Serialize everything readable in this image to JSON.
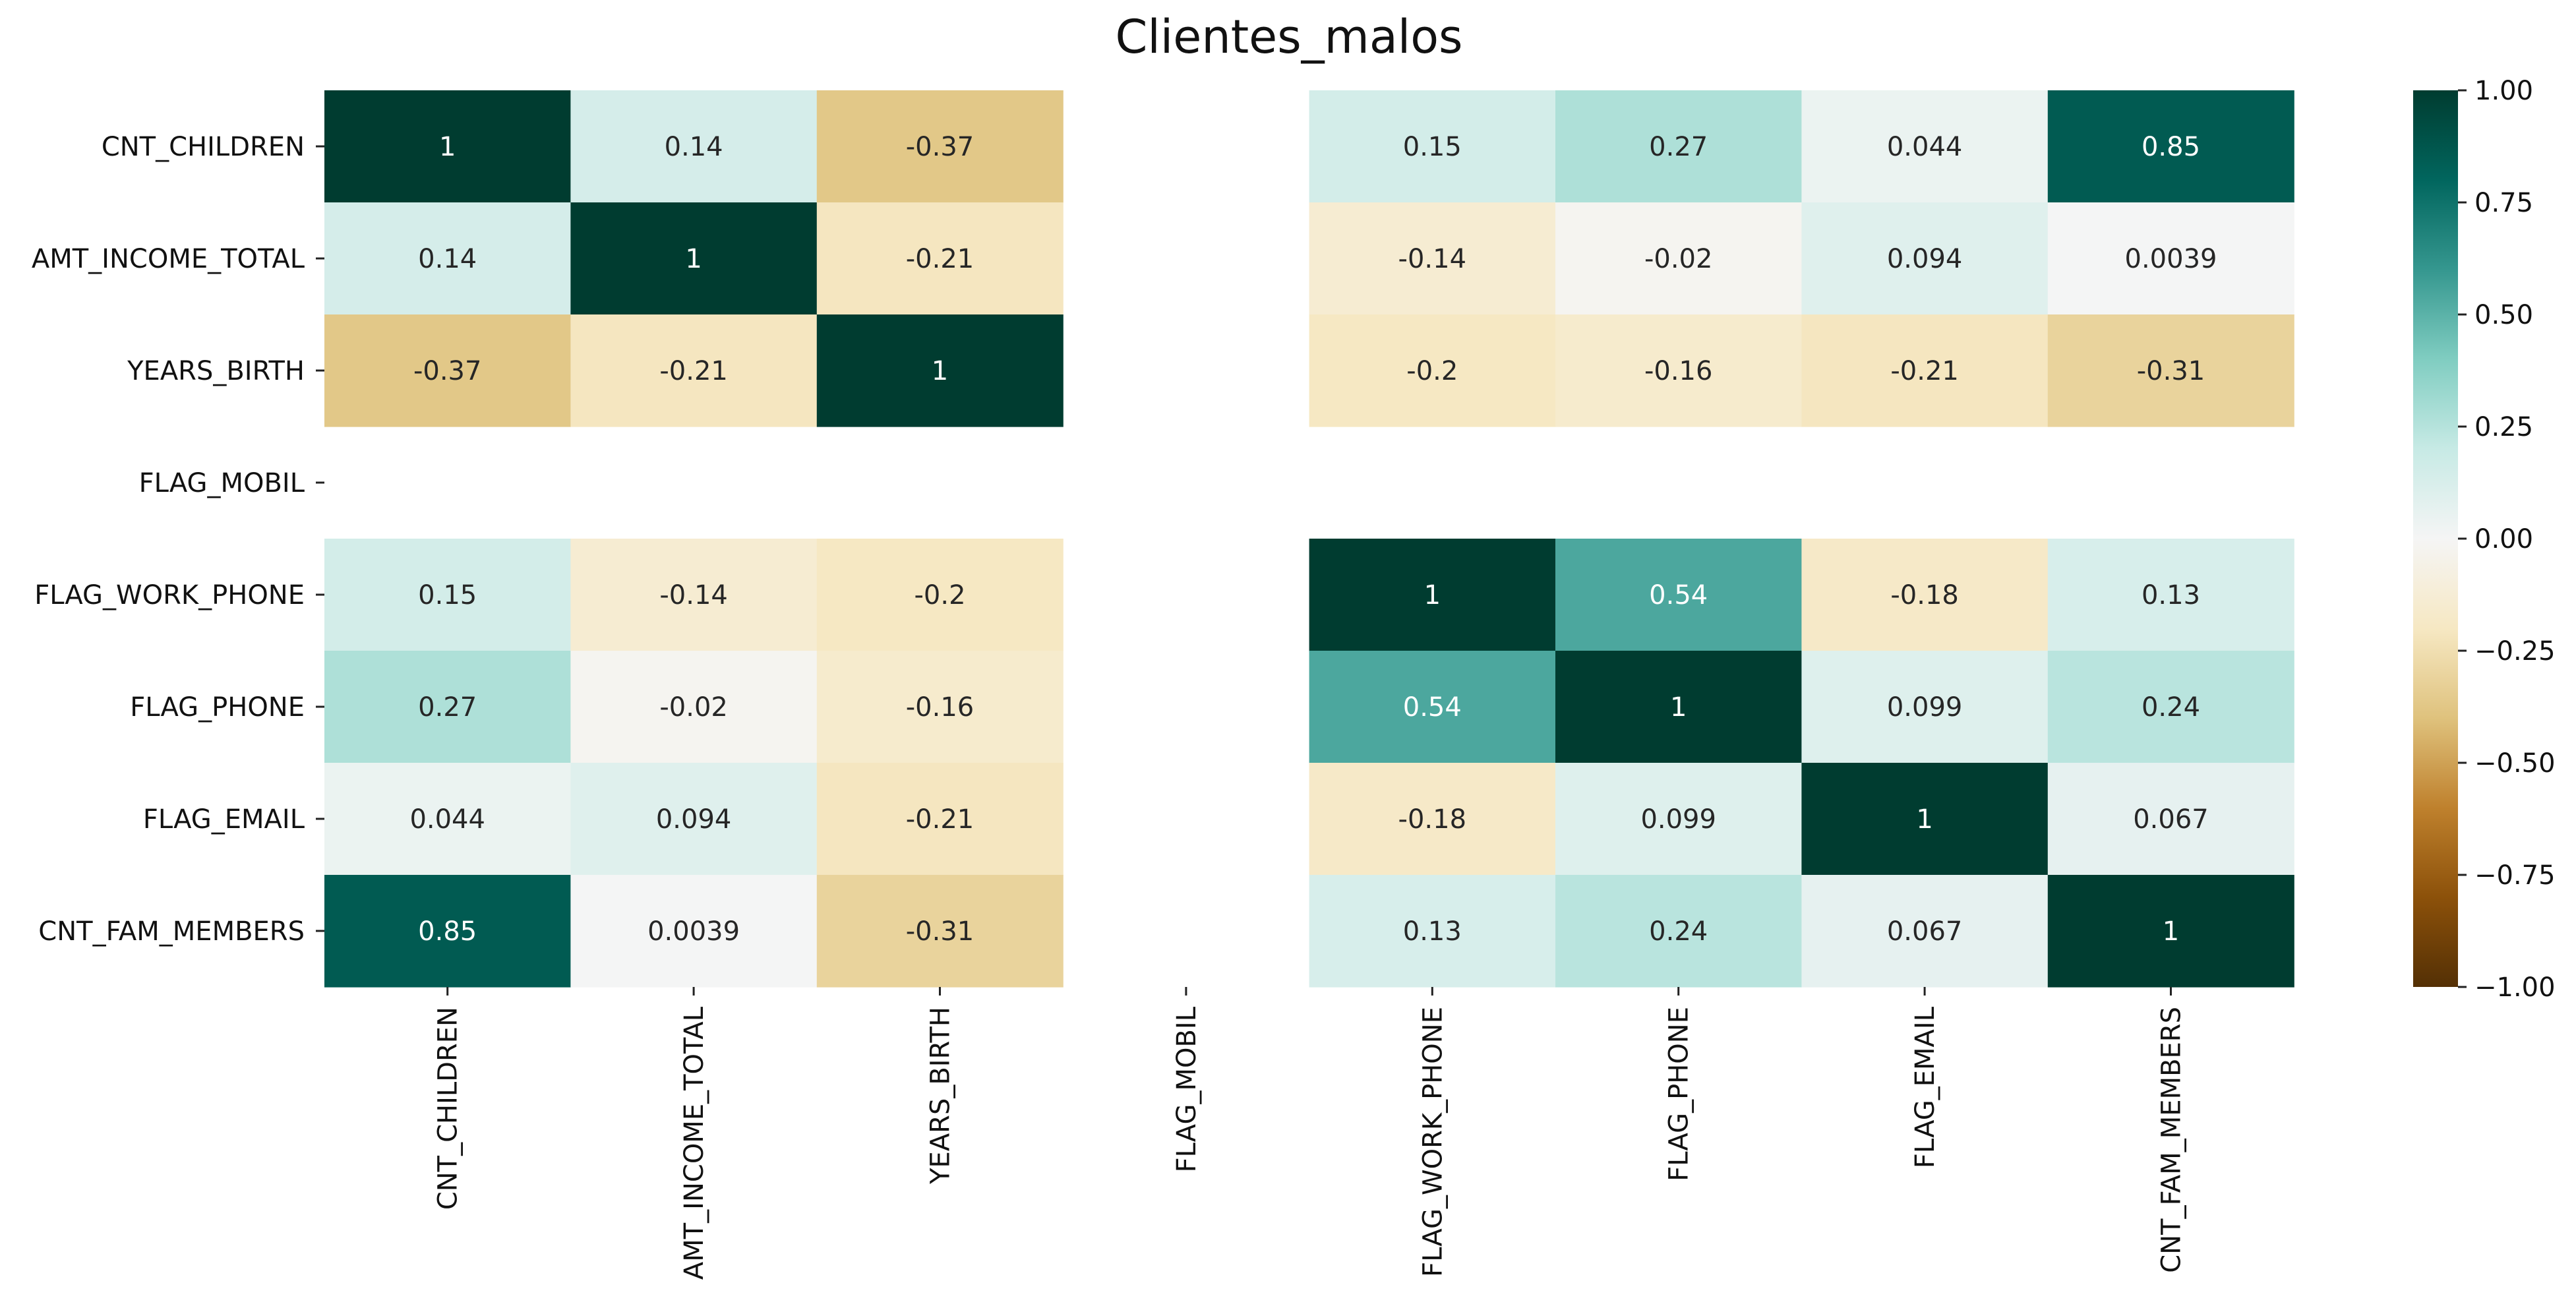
{
  "chart_data": {
    "type": "heatmap",
    "title": "Clientes_malos",
    "row_labels": [
      "CNT_CHILDREN",
      "AMT_INCOME_TOTAL",
      "YEARS_BIRTH",
      "FLAG_MOBIL",
      "FLAG_WORK_PHONE",
      "FLAG_PHONE",
      "FLAG_EMAIL",
      "CNT_FAM_MEMBERS"
    ],
    "col_labels": [
      "CNT_CHILDREN",
      "AMT_INCOME_TOTAL",
      "YEARS_BIRTH",
      "FLAG_MOBIL",
      "FLAG_WORK_PHONE",
      "FLAG_PHONE",
      "FLAG_EMAIL",
      "CNT_FAM_MEMBERS"
    ],
    "values": [
      [
        1,
        0.14,
        -0.37,
        null,
        0.15,
        0.27,
        0.044,
        0.85
      ],
      [
        0.14,
        1,
        -0.21,
        null,
        -0.14,
        -0.02,
        0.094,
        0.0039
      ],
      [
        -0.37,
        -0.21,
        1,
        null,
        -0.2,
        -0.16,
        -0.21,
        -0.31
      ],
      [
        null,
        null,
        null,
        null,
        null,
        null,
        null,
        null
      ],
      [
        0.15,
        -0.14,
        -0.2,
        null,
        1,
        0.54,
        -0.18,
        0.13
      ],
      [
        0.27,
        -0.02,
        -0.16,
        null,
        0.54,
        1,
        0.099,
        0.24
      ],
      [
        0.044,
        0.094,
        -0.21,
        null,
        -0.18,
        0.099,
        1,
        0.067
      ],
      [
        0.85,
        0.0039,
        -0.31,
        null,
        0.13,
        0.24,
        0.067,
        1
      ]
    ],
    "annotations": [
      [
        "1",
        "0.14",
        "-0.37",
        "",
        "0.15",
        "0.27",
        "0.044",
        "0.85"
      ],
      [
        "0.14",
        "1",
        "-0.21",
        "",
        "-0.14",
        "-0.02",
        "0.094",
        "0.0039"
      ],
      [
        "-0.37",
        "-0.21",
        "1",
        "",
        "-0.2",
        "-0.16",
        "-0.21",
        "-0.31"
      ],
      [
        "",
        "",
        "",
        "",
        "",
        "",
        "",
        ""
      ],
      [
        "0.15",
        "-0.14",
        "-0.2",
        "",
        "1",
        "0.54",
        "-0.18",
        "0.13"
      ],
      [
        "0.27",
        "-0.02",
        "-0.16",
        "",
        "0.54",
        "1",
        "0.099",
        "0.24"
      ],
      [
        "0.044",
        "0.094",
        "-0.21",
        "",
        "-0.18",
        "0.099",
        "1",
        "0.067"
      ],
      [
        "0.85",
        "0.0039",
        "-0.31",
        "",
        "0.13",
        "0.24",
        "0.067",
        "1"
      ]
    ],
    "colormap": "BrBG",
    "vmin": -1,
    "vmax": 1,
    "colorbar_ticks": [
      1.0,
      0.75,
      0.5,
      0.25,
      0.0,
      -0.25,
      -0.5,
      -0.75,
      -1.0
    ],
    "colorbar_tick_labels": [
      "1.00",
      "0.75",
      "0.50",
      "0.25",
      "0.00",
      "−0.25",
      "−0.50",
      "−0.75",
      "−1.00"
    ],
    "grid": false,
    "colorbar_position": "right"
  }
}
